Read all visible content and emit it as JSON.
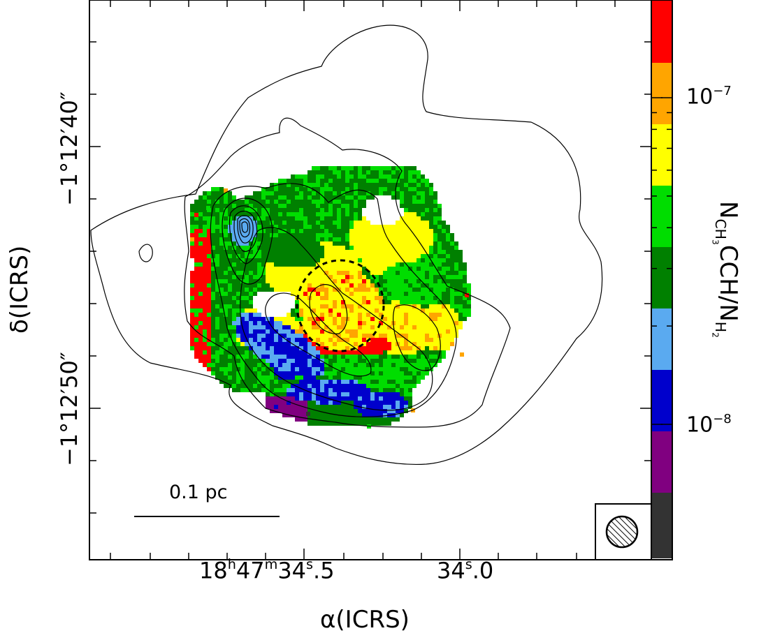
{
  "chart_data": {
    "type": "heatmap",
    "title": "",
    "xlabel": "α(ICRS)",
    "ylabel": "δ(ICRS)",
    "x_tick_labels": [
      {
        "h": "18",
        "m": "47",
        "s": "34",
        "frac": ".5",
        "units": [
          "h",
          "m",
          "s"
        ]
      },
      {
        "s": "34",
        "frac": ".0",
        "units": [
          "s"
        ]
      }
    ],
    "y_tick_labels": [
      "−1°12′40″",
      "−1°12′50″"
    ],
    "x_ticks_ra": [
      "18h47m34.5s",
      "18h47m34.0s"
    ],
    "y_ticks_dec": [
      "-1d12m40s",
      "-1d12m50s"
    ],
    "colorbar": {
      "label_main": "N",
      "label_sub1": "CH",
      "label_sub2": "3",
      "label_mid": "CCH/N",
      "label_sub3": "H",
      "label_sub4": "2",
      "scale": "log",
      "ticks": [
        {
          "base": "10",
          "exp": "−7",
          "value": 1e-07
        },
        {
          "base": "10",
          "exp": "−8",
          "value": 1e-08
        }
      ],
      "colors_top_to_bottom": [
        "#ff0000",
        "#ffa500",
        "#ffff00",
        "#00dd00",
        "#008000",
        "#5aaaf0",
        "#0000cc",
        "#800080",
        "#333333"
      ],
      "bin_edges_log10": [
        -8.6,
        -8.35,
        -8.1,
        -7.85,
        -7.6,
        -7.35,
        -7.1,
        -6.85,
        -6.6,
        -6.35
      ]
    },
    "scale_bar_label": "0.1 pc",
    "beam": "hatched circle",
    "contour_levels": 10,
    "dashed_ellipse": true,
    "grid": false,
    "legend": "none",
    "colors": {
      "contour": "#000000",
      "frame": "#000000"
    }
  }
}
